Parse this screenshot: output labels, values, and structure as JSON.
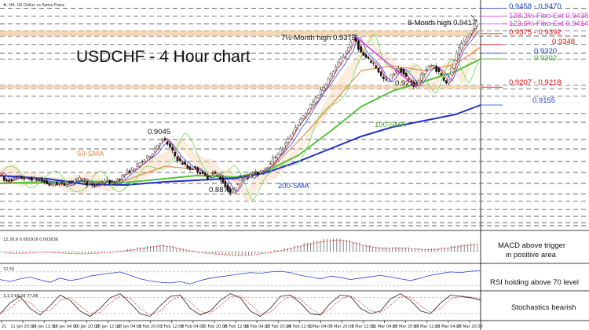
{
  "window": {
    "symbol_line": "#, H4: US Dollar vs Swiss Franc"
  },
  "chart_data": {
    "type": "line",
    "title": "USDCHF - 4 Hour chart",
    "timeframe": "H4",
    "ylim": [
      0.876,
      0.948
    ],
    "x_tick_labels": [
      "21",
      "11 Jan 20:00",
      "14 Jan 12:00",
      "18 Jan 04:00",
      "20 Jan 20:00",
      "25 Jan 12:00",
      "28 Jan 04:00",
      "1 Feb 20:00",
      "3 Feb 12:00",
      "8 Feb 04:00",
      "10 Feb 20:00",
      "15 Feb 12:00",
      "18 Feb 04:00",
      "22 Feb 20:00",
      "24 Feb 12:00",
      "1 Mar 04:00",
      "3 Mar 20:00",
      "8 Mar 12:00",
      "11 Mar 04:00",
      "15 Mar 20:00",
      "18 Mar 12:00",
      "23 Mar 04:00",
      "25 Mar 20:00"
    ],
    "price_path": [
      [
        0,
        0.8935
      ],
      [
        8,
        0.891
      ],
      [
        16,
        0.8918
      ],
      [
        25,
        0.8925
      ],
      [
        35,
        0.892
      ],
      [
        45,
        0.892
      ],
      [
        55,
        0.8912
      ],
      [
        65,
        0.89
      ],
      [
        75,
        0.8905
      ],
      [
        85,
        0.89
      ],
      [
        95,
        0.8915
      ],
      [
        105,
        0.892
      ],
      [
        112,
        0.8905
      ],
      [
        118,
        0.8895
      ],
      [
        125,
        0.89
      ],
      [
        135,
        0.8915
      ],
      [
        145,
        0.8905
      ],
      [
        153,
        0.892
      ],
      [
        160,
        0.8935
      ],
      [
        167,
        0.8945
      ],
      [
        175,
        0.896
      ],
      [
        183,
        0.8975
      ],
      [
        190,
        0.899
      ],
      [
        196,
        0.9005
      ],
      [
        201,
        0.9025
      ],
      [
        206,
        0.904
      ],
      [
        210,
        0.9045
      ],
      [
        215,
        0.903
      ],
      [
        220,
        0.901
      ],
      [
        225,
        0.899
      ],
      [
        230,
        0.8975
      ],
      [
        236,
        0.8965
      ],
      [
        242,
        0.895
      ],
      [
        248,
        0.8955
      ],
      [
        254,
        0.8945
      ],
      [
        260,
        0.893
      ],
      [
        266,
        0.8925
      ],
      [
        272,
        0.894
      ],
      [
        278,
        0.893
      ],
      [
        284,
        0.8915
      ],
      [
        290,
        0.889
      ],
      [
        296,
        0.8871
      ],
      [
        301,
        0.8895
      ],
      [
        306,
        0.8915
      ],
      [
        312,
        0.893
      ],
      [
        318,
        0.8925
      ],
      [
        324,
        0.894
      ],
      [
        330,
        0.8935
      ],
      [
        336,
        0.895
      ],
      [
        342,
        0.896
      ],
      [
        348,
        0.898
      ],
      [
        354,
        0.8995
      ],
      [
        360,
        0.9015
      ],
      [
        366,
        0.9035
      ],
      [
        372,
        0.906
      ],
      [
        378,
        0.9085
      ],
      [
        384,
        0.9105
      ],
      [
        390,
        0.9125
      ],
      [
        396,
        0.915
      ],
      [
        402,
        0.917
      ],
      [
        408,
        0.9195
      ],
      [
        414,
        0.9215
      ],
      [
        420,
        0.924
      ],
      [
        426,
        0.9265
      ],
      [
        432,
        0.9285
      ],
      [
        438,
        0.931
      ],
      [
        444,
        0.933
      ],
      [
        448,
        0.936
      ],
      [
        452,
        0.9375
      ],
      [
        456,
        0.935
      ],
      [
        460,
        0.9325
      ],
      [
        465,
        0.931
      ],
      [
        470,
        0.93
      ],
      [
        476,
        0.929
      ],
      [
        482,
        0.927
      ],
      [
        488,
        0.924
      ],
      [
        494,
        0.923
      ],
      [
        500,
        0.925
      ],
      [
        506,
        0.927
      ],
      [
        512,
        0.9265
      ],
      [
        518,
        0.9245
      ],
      [
        524,
        0.923
      ],
      [
        530,
        0.9213
      ],
      [
        536,
        0.924
      ],
      [
        542,
        0.9265
      ],
      [
        548,
        0.928
      ],
      [
        554,
        0.9275
      ],
      [
        560,
        0.926
      ],
      [
        566,
        0.924
      ],
      [
        570,
        0.9228
      ],
      [
        575,
        0.926
      ],
      [
        580,
        0.93
      ],
      [
        585,
        0.933
      ],
      [
        590,
        0.935
      ],
      [
        595,
        0.9365
      ],
      [
        600,
        0.9385
      ],
      [
        604,
        0.94
      ],
      [
        608,
        0.9417
      ],
      [
        611,
        0.941
      ]
    ],
    "series": [
      {
        "name": "50-SMA",
        "color": "#e8894a",
        "path": [
          [
            0,
            0.8905
          ],
          [
            60,
            0.8905
          ],
          [
            110,
            0.8905
          ],
          [
            160,
            0.8915
          ],
          [
            210,
            0.896
          ],
          [
            250,
            0.895
          ],
          [
            300,
            0.8915
          ],
          [
            340,
            0.894
          ],
          [
            380,
            0.904
          ],
          [
            420,
            0.915
          ],
          [
            460,
            0.9265
          ],
          [
            500,
            0.928
          ],
          [
            540,
            0.9265
          ],
          [
            580,
            0.9285
          ],
          [
            612,
            0.934
          ]
        ]
      },
      {
        "name": "100-SMA",
        "color": "#55c23a",
        "path": [
          [
            0,
            0.8905
          ],
          [
            60,
            0.891
          ],
          [
            110,
            0.8912
          ],
          [
            160,
            0.8908
          ],
          [
            210,
            0.892
          ],
          [
            250,
            0.893
          ],
          [
            300,
            0.8925
          ],
          [
            340,
            0.8945
          ],
          [
            380,
            0.8995
          ],
          [
            420,
            0.907
          ],
          [
            460,
            0.915
          ],
          [
            500,
            0.92
          ],
          [
            540,
            0.923
          ],
          [
            580,
            0.9262
          ],
          [
            612,
            0.9302
          ]
        ]
      },
      {
        "name": "200-SMA",
        "color": "#2030c8",
        "path": [
          [
            0,
            0.893
          ],
          [
            60,
            0.892
          ],
          [
            110,
            0.8902
          ],
          [
            160,
            0.89
          ],
          [
            210,
            0.891
          ],
          [
            250,
            0.8915
          ],
          [
            300,
            0.8922
          ],
          [
            340,
            0.894
          ],
          [
            380,
            0.8975
          ],
          [
            420,
            0.9015
          ],
          [
            460,
            0.9055
          ],
          [
            500,
            0.9085
          ],
          [
            540,
            0.9105
          ],
          [
            580,
            0.9125
          ],
          [
            612,
            0.9155
          ]
        ]
      }
    ],
    "levels": [
      {
        "label": "0.9458 - 0.9470",
        "value": 0.9464,
        "color": "#1a3fd0"
      },
      {
        "label": "138.2% Fibo Ext 0.9438",
        "value": 0.9438,
        "color": "#e040e0"
      },
      {
        "label": "123.6% Fibo Ext 0.9414",
        "value": 0.9414,
        "color": "#e040e0"
      },
      {
        "label": "0.9375 - 0.9392",
        "value": 0.9383,
        "color": "#e01010"
      },
      {
        "label": "0.9348",
        "value": 0.9348,
        "color": "#e01010"
      },
      {
        "label": "0.9320",
        "value": 0.932,
        "color": "#1a3fd0"
      },
      {
        "label": "0.9302",
        "value": 0.9302,
        "color": "#3ab020"
      },
      {
        "label": "0.9207 - 0.9218",
        "value": 0.9212,
        "color": "#e01010"
      },
      {
        "label": "0.9155",
        "value": 0.9155,
        "color": "#1a3fd0"
      }
    ],
    "zones": [
      {
        "from": 0.9375,
        "to": 0.9392
      },
      {
        "from": 0.9207,
        "to": 0.9218
      }
    ],
    "dashed_levels": [
      0.9464,
      0.9438,
      0.9414,
      0.9392,
      0.9375,
      0.9348,
      0.932,
      0.9302,
      0.9218,
      0.9207,
      0.9183,
      0.9128,
      0.91,
      0.9045,
      0.9015,
      0.8975,
      0.894,
      0.8905,
      0.8871,
      0.8848,
      0.8822,
      0.88,
      0.878,
      0.877
    ],
    "trendline": {
      "color": "#e040e0",
      "from": [
        452,
        0.9375
      ],
      "to": [
        530,
        0.9213
      ]
    },
    "annotations": [
      {
        "text": "8-Month high 0.9417",
        "anchor": [
          608,
          0.9417
        ]
      },
      {
        "text": "7½-Month high 0.9375",
        "anchor": [
          452,
          0.9375
        ]
      },
      {
        "text": "0.9213",
        "anchor": [
          530,
          0.9213
        ]
      },
      {
        "text": "0.9045",
        "anchor": [
          210,
          0.9045
        ]
      },
      {
        "text": "0.8871",
        "anchor": [
          296,
          0.8871
        ]
      },
      {
        "text": "50-SMA",
        "color": "#e8894a"
      },
      {
        "text": "100-SMA",
        "color": "#3ab020"
      },
      {
        "text": "200-SMA",
        "color": "#1a3fd0"
      }
    ],
    "indicators": [
      {
        "name": "MACD",
        "params": "12,26,9 0.002916 0.002636",
        "comment": "MACD above trigger in positive area",
        "histogram": [
          -0.0003,
          -0.0005,
          -0.0004,
          -0.0002,
          0.0,
          -0.0002,
          -0.0004,
          -0.0006,
          -0.0007,
          -0.0005,
          -0.0003,
          0.0,
          0.0004,
          0.0009,
          0.0015,
          0.002,
          0.0025,
          0.0021,
          0.0012,
          0.0004,
          -0.0002,
          -0.0006,
          -0.0009,
          -0.0012,
          -0.0014,
          -0.0012,
          -0.0007,
          -0.0002,
          0.0005,
          0.0013,
          0.0022,
          0.0031,
          0.0039,
          0.0045,
          0.0047,
          0.0042,
          0.0033,
          0.0023,
          0.0017,
          0.0015,
          0.0016,
          0.0015,
          0.0012,
          0.001,
          0.0011,
          0.0015,
          0.0021,
          0.0026,
          0.0029
        ]
      },
      {
        "name": "RSI",
        "params": "72.55",
        "comment": "RSI holding above 70 level",
        "values": [
          48,
          42,
          50,
          55,
          47,
          40,
          52,
          45,
          50,
          58,
          62,
          66,
          70,
          60,
          50,
          44,
          40,
          38,
          42,
          35,
          45,
          52,
          56,
          60,
          64,
          68,
          66,
          70,
          72,
          68,
          60,
          55,
          50,
          58,
          54,
          48,
          52,
          56,
          60,
          55,
          50,
          45,
          52,
          60,
          65,
          70,
          68,
          72,
          73
        ]
      },
      {
        "name": "Stochastics",
        "params": "3,3,3 69.06 77.86",
        "comment": "Stochastics bearish",
        "values": [
          20,
          60,
          85,
          40,
          15,
          50,
          90,
          70,
          30,
          10,
          40,
          80,
          95,
          60,
          20,
          10,
          50,
          85,
          90,
          40,
          15,
          30,
          70,
          95,
          80,
          30,
          10,
          40,
          85,
          90,
          60,
          20,
          15,
          60,
          90,
          85,
          40,
          20,
          30,
          75,
          95,
          70,
          30,
          20,
          60,
          90,
          85,
          80,
          70
        ]
      }
    ]
  }
}
